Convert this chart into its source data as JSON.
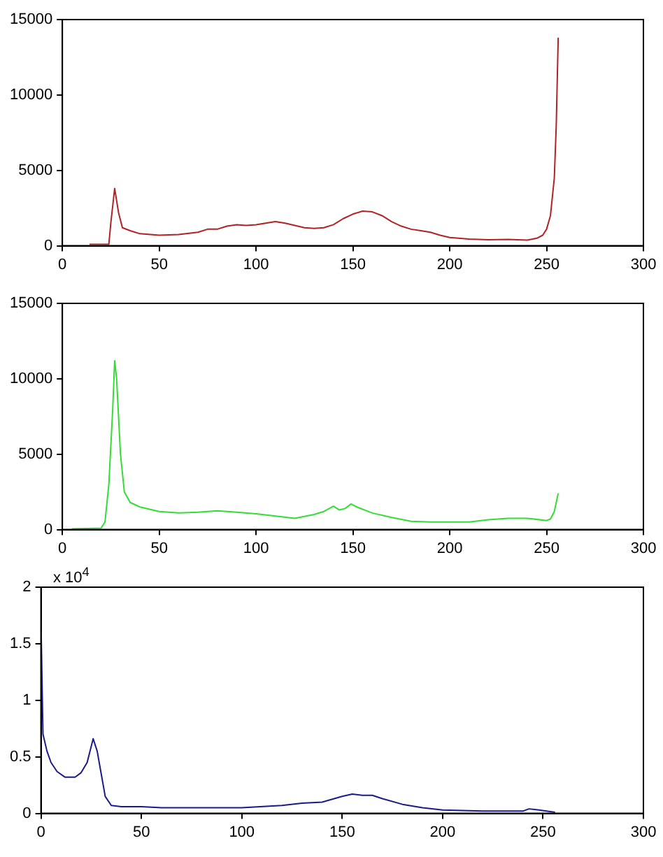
{
  "chart_data": [
    {
      "type": "line",
      "xlim": [
        0,
        300
      ],
      "xticks": [
        0,
        50,
        100,
        150,
        200,
        250,
        300
      ],
      "ylim": [
        0,
        15000
      ],
      "yticks": [
        0,
        5000,
        10000,
        15000
      ],
      "grid": false,
      "legend": false,
      "marker": "none",
      "line_style": "solid",
      "series": [
        {
          "color": "#b22222",
          "x": [
            14,
            24,
            25,
            27,
            29,
            31,
            35,
            40,
            50,
            60,
            70,
            75,
            80,
            85,
            90,
            95,
            100,
            105,
            110,
            115,
            120,
            125,
            130,
            135,
            140,
            145,
            150,
            155,
            160,
            165,
            170,
            175,
            180,
            185,
            190,
            195,
            200,
            210,
            220,
            230,
            240,
            245,
            248,
            250,
            252,
            254,
            255,
            256
          ],
          "values": [
            100,
            100,
            1500,
            3800,
            2200,
            1200,
            1000,
            800,
            700,
            750,
            900,
            1100,
            1100,
            1300,
            1400,
            1350,
            1400,
            1500,
            1600,
            1500,
            1350,
            1200,
            1150,
            1200,
            1400,
            1800,
            2100,
            2300,
            2250,
            2000,
            1600,
            1300,
            1100,
            1000,
            900,
            700,
            550,
            450,
            400,
            420,
            380,
            500,
            700,
            1100,
            2000,
            4500,
            8000,
            13800
          ]
        }
      ]
    },
    {
      "type": "line",
      "xlim": [
        0,
        300
      ],
      "xticks": [
        0,
        50,
        100,
        150,
        200,
        250,
        300
      ],
      "ylim": [
        0,
        15000
      ],
      "yticks": [
        0,
        5000,
        10000,
        15000
      ],
      "grid": false,
      "legend": false,
      "marker": "none",
      "line_style": "solid",
      "series": [
        {
          "color": "#33dd33",
          "x": [
            5,
            20,
            22,
            24,
            26,
            27,
            28,
            30,
            32,
            35,
            40,
            50,
            60,
            70,
            80,
            90,
            100,
            110,
            120,
            130,
            135,
            140,
            143,
            146,
            149,
            152,
            160,
            170,
            180,
            190,
            200,
            210,
            220,
            230,
            240,
            250,
            252,
            254,
            256
          ],
          "values": [
            50,
            100,
            500,
            3000,
            8000,
            11200,
            10000,
            5000,
            2500,
            1800,
            1500,
            1200,
            1100,
            1150,
            1250,
            1150,
            1050,
            900,
            750,
            1000,
            1200,
            1550,
            1300,
            1400,
            1700,
            1500,
            1100,
            800,
            550,
            500,
            500,
            500,
            650,
            750,
            750,
            600,
            700,
            1200,
            2400
          ]
        }
      ]
    },
    {
      "type": "line",
      "xlim": [
        0,
        300
      ],
      "xticks": [
        0,
        50,
        100,
        150,
        200,
        250,
        300
      ],
      "ylim": [
        0,
        2
      ],
      "yticks": [
        0,
        0.5,
        1,
        1.5,
        2
      ],
      "grid": false,
      "legend": false,
      "marker": "none",
      "line_style": "solid",
      "annotations": [
        "x 10$^{4}$"
      ],
      "series": [
        {
          "color": "#1a1a8c",
          "x": [
            0,
            1,
            3,
            5,
            8,
            12,
            17,
            20,
            23,
            26,
            28,
            30,
            32,
            35,
            40,
            50,
            60,
            80,
            100,
            120,
            130,
            140,
            150,
            155,
            160,
            165,
            170,
            180,
            190,
            200,
            220,
            240,
            243,
            248,
            256
          ],
          "values": [
            1.7,
            0.7,
            0.55,
            0.45,
            0.37,
            0.32,
            0.32,
            0.36,
            0.45,
            0.66,
            0.55,
            0.35,
            0.15,
            0.07,
            0.06,
            0.06,
            0.05,
            0.05,
            0.05,
            0.07,
            0.09,
            0.1,
            0.15,
            0.17,
            0.16,
            0.16,
            0.13,
            0.08,
            0.05,
            0.03,
            0.02,
            0.02,
            0.04,
            0.03,
            0.01
          ]
        }
      ]
    }
  ]
}
